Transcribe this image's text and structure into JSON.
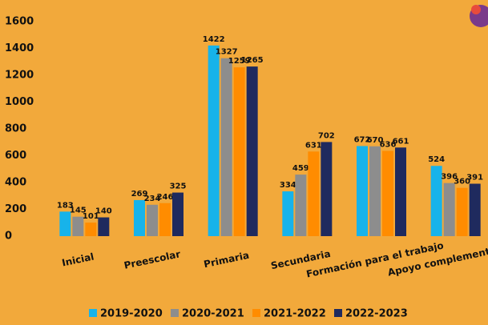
{
  "chart_data": {
    "type": "bar",
    "categories": [
      "Inicial",
      "Preescolar",
      "Primaria",
      "Secundaria",
      "Formación para el trabajo",
      "Apoyo complementario"
    ],
    "series": [
      {
        "name": "2019-2020",
        "color": "#17b3ea",
        "values": [
          183,
          269,
          1422,
          334,
          672,
          524
        ]
      },
      {
        "name": "2020-2021",
        "color": "#8d8d8d",
        "values": [
          145,
          234,
          1327,
          459,
          670,
          396
        ]
      },
      {
        "name": "2021-2022",
        "color": "#ff8c00",
        "values": [
          101,
          246,
          1259,
          631,
          636,
          360
        ]
      },
      {
        "name": "2022-2023",
        "color": "#1f2a5e",
        "values": [
          140,
          325,
          1265,
          702,
          661,
          391
        ]
      }
    ],
    "ylim": [
      0,
      1600
    ],
    "yticks": [
      0,
      200,
      400,
      600,
      800,
      1000,
      1200,
      1400,
      1600
    ],
    "legend": "bottom"
  }
}
